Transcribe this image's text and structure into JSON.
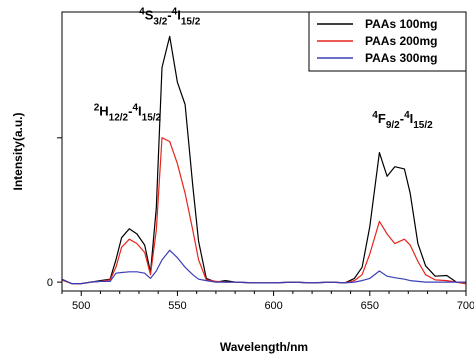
{
  "chart_data": {
    "type": "line",
    "title": "",
    "xlabel": "Wavelength/nm",
    "ylabel": "Intensity(a.u.)",
    "xlim": [
      490,
      700
    ],
    "ylim": [
      -0.12,
      3.65
    ],
    "x_ticks": [
      500,
      550,
      600,
      650,
      700
    ],
    "y_ticks": [
      0
    ],
    "grid": false,
    "legend_position": "top-right",
    "series": [
      {
        "name": "PAAs 100mg",
        "color": "#000000",
        "points": [
          [
            490,
            0.03
          ],
          [
            495,
            -0.02
          ],
          [
            500,
            -0.02
          ],
          [
            505,
            0.0
          ],
          [
            510,
            0.02
          ],
          [
            515,
            0.04
          ],
          [
            518,
            0.3
          ],
          [
            521,
            0.6
          ],
          [
            525,
            0.72
          ],
          [
            529,
            0.65
          ],
          [
            533,
            0.5
          ],
          [
            536,
            0.13
          ],
          [
            539,
            1.0
          ],
          [
            542,
            2.9
          ],
          [
            546,
            3.32
          ],
          [
            550,
            2.7
          ],
          [
            554,
            2.4
          ],
          [
            558,
            1.3
          ],
          [
            561,
            0.55
          ],
          [
            565,
            0.05
          ],
          [
            570,
            0.0
          ],
          [
            575,
            0.02
          ],
          [
            580,
            0.0
          ],
          [
            590,
            -0.01
          ],
          [
            600,
            -0.01
          ],
          [
            610,
            0.0
          ],
          [
            620,
            -0.01
          ],
          [
            630,
            0.0
          ],
          [
            637,
            -0.01
          ],
          [
            642,
            0.05
          ],
          [
            646,
            0.2
          ],
          [
            650,
            0.75
          ],
          [
            655,
            1.75
          ],
          [
            659,
            1.43
          ],
          [
            663,
            1.56
          ],
          [
            668,
            1.53
          ],
          [
            671,
            1.2
          ],
          [
            675,
            0.52
          ],
          [
            679,
            0.22
          ],
          [
            684,
            0.08
          ],
          [
            690,
            0.09
          ],
          [
            695,
            0.0
          ],
          [
            700,
            -0.02
          ]
        ]
      },
      {
        "name": "PAAs 200mg",
        "color": "#e8241c",
        "points": [
          [
            490,
            0.03
          ],
          [
            495,
            -0.02
          ],
          [
            500,
            -0.02
          ],
          [
            505,
            0.0
          ],
          [
            510,
            0.01
          ],
          [
            515,
            0.03
          ],
          [
            518,
            0.2
          ],
          [
            521,
            0.47
          ],
          [
            525,
            0.58
          ],
          [
            529,
            0.52
          ],
          [
            533,
            0.4
          ],
          [
            536,
            0.1
          ],
          [
            539,
            0.7
          ],
          [
            542,
            1.95
          ],
          [
            546,
            1.9
          ],
          [
            550,
            1.6
          ],
          [
            554,
            1.2
          ],
          [
            558,
            0.7
          ],
          [
            561,
            0.3
          ],
          [
            565,
            0.03
          ],
          [
            570,
            0.01
          ],
          [
            575,
            0.0
          ],
          [
            580,
            0.0
          ],
          [
            590,
            -0.01
          ],
          [
            600,
            -0.01
          ],
          [
            610,
            0.0
          ],
          [
            620,
            -0.01
          ],
          [
            630,
            0.0
          ],
          [
            637,
            -0.01
          ],
          [
            642,
            0.02
          ],
          [
            646,
            0.1
          ],
          [
            650,
            0.38
          ],
          [
            655,
            0.82
          ],
          [
            659,
            0.65
          ],
          [
            663,
            0.52
          ],
          [
            668,
            0.58
          ],
          [
            671,
            0.5
          ],
          [
            675,
            0.28
          ],
          [
            679,
            0.1
          ],
          [
            684,
            0.03
          ],
          [
            690,
            0.02
          ],
          [
            695,
            0.0
          ],
          [
            700,
            -0.02
          ]
        ]
      },
      {
        "name": "PAAs 300mg",
        "color": "#3a3fb8",
        "points": [
          [
            490,
            0.04
          ],
          [
            495,
            -0.02
          ],
          [
            500,
            -0.02
          ],
          [
            505,
            0.0
          ],
          [
            510,
            0.01
          ],
          [
            515,
            0.01
          ],
          [
            518,
            0.12
          ],
          [
            521,
            0.13
          ],
          [
            525,
            0.14
          ],
          [
            529,
            0.14
          ],
          [
            533,
            0.12
          ],
          [
            536,
            0.05
          ],
          [
            539,
            0.15
          ],
          [
            542,
            0.3
          ],
          [
            546,
            0.43
          ],
          [
            550,
            0.33
          ],
          [
            554,
            0.2
          ],
          [
            558,
            0.1
          ],
          [
            561,
            0.04
          ],
          [
            565,
            0.02
          ],
          [
            570,
            0.0
          ],
          [
            575,
            0.0
          ],
          [
            580,
            0.0
          ],
          [
            590,
            -0.01
          ],
          [
            600,
            -0.01
          ],
          [
            610,
            0.0
          ],
          [
            620,
            -0.01
          ],
          [
            630,
            0.0
          ],
          [
            637,
            -0.01
          ],
          [
            642,
            0.0
          ],
          [
            646,
            0.02
          ],
          [
            650,
            0.05
          ],
          [
            655,
            0.15
          ],
          [
            659,
            0.08
          ],
          [
            663,
            0.06
          ],
          [
            668,
            0.04
          ],
          [
            671,
            0.02
          ],
          [
            675,
            0.01
          ],
          [
            679,
            0.0
          ],
          [
            684,
            0.0
          ],
          [
            690,
            0.0
          ],
          [
            695,
            0.0
          ],
          [
            700,
            0.0
          ]
        ]
      }
    ],
    "annotations": [
      {
        "at": [
          524,
          2.25
        ],
        "parts": [
          [
            "sup",
            "2"
          ],
          [
            "main",
            "H"
          ],
          [
            "sub",
            "12/2"
          ],
          [
            "main",
            "-"
          ],
          [
            "sup",
            "4"
          ],
          [
            "main",
            "I"
          ],
          [
            "sub",
            "15/2"
          ]
        ]
      },
      {
        "at": [
          546,
          3.55
        ],
        "parts": [
          [
            "sup",
            "4"
          ],
          [
            "main",
            "S"
          ],
          [
            "sub",
            "3/2"
          ],
          [
            "main",
            "-"
          ],
          [
            "sup",
            "4"
          ],
          [
            "main",
            "I"
          ],
          [
            "sub",
            "15/2"
          ]
        ]
      },
      {
        "at": [
          667,
          2.15
        ],
        "parts": [
          [
            "sup",
            "4"
          ],
          [
            "main",
            "F"
          ],
          [
            "sub",
            "9/2"
          ],
          [
            "main",
            "-"
          ],
          [
            "sup",
            "4"
          ],
          [
            "main",
            "I"
          ],
          [
            "sub",
            "15/2"
          ]
        ]
      }
    ]
  }
}
